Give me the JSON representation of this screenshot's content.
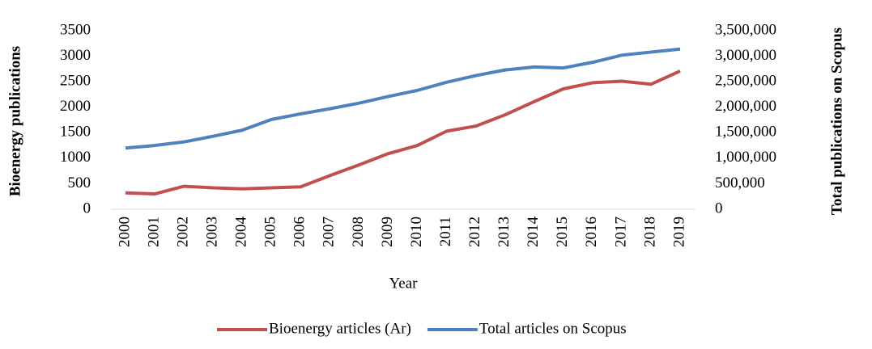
{
  "chart_data": {
    "type": "line",
    "ylabel": "Bioenergy publications",
    "y2label": "Total publications on Scopus",
    "xlabel": "Year",
    "categories": [
      "2000",
      "2001",
      "2002",
      "2003",
      "2004",
      "2005",
      "2006",
      "2007",
      "2008",
      "2009",
      "2010",
      "2011",
      "2012",
      "2013",
      "2014",
      "2015",
      "2016",
      "2017",
      "2018",
      "2019"
    ],
    "series": [
      {
        "name": "Bioenergy articles (Ar)",
        "color": "#c0504d",
        "axis": "y",
        "values": [
          320,
          300,
          450,
          420,
          400,
          420,
          440,
          660,
          870,
          1090,
          1250,
          1530,
          1630,
          1850,
          2110,
          2360,
          2480,
          2510,
          2450,
          2710
        ]
      },
      {
        "name": "Total articles on Scopus",
        "color": "#4f81bd",
        "axis": "y2",
        "values": [
          1200000,
          1250000,
          1320000,
          1430000,
          1550000,
          1760000,
          1870000,
          1970000,
          2080000,
          2210000,
          2330000,
          2490000,
          2620000,
          2730000,
          2790000,
          2770000,
          2880000,
          3020000,
          3080000,
          3140000
        ]
      }
    ],
    "ylim": [
      0,
      3500
    ],
    "yticks": [
      0,
      500,
      1000,
      1500,
      2000,
      2500,
      3000,
      3500
    ],
    "y2lim": [
      0,
      3500000
    ],
    "y2ticks": [
      0,
      {
        "value": 500000,
        "label": "500,000"
      },
      {
        "value": 1000000,
        "label": "1,000,000"
      },
      {
        "value": 1500000,
        "label": "1,500,000"
      },
      {
        "value": 2000000,
        "label": "2,000,000"
      },
      {
        "value": 2500000,
        "label": "2,500,000"
      },
      {
        "value": 3000000,
        "label": "3,000,000"
      },
      {
        "value": 3500000,
        "label": "3,500,000"
      }
    ],
    "grid": false,
    "legend": "bottom"
  }
}
